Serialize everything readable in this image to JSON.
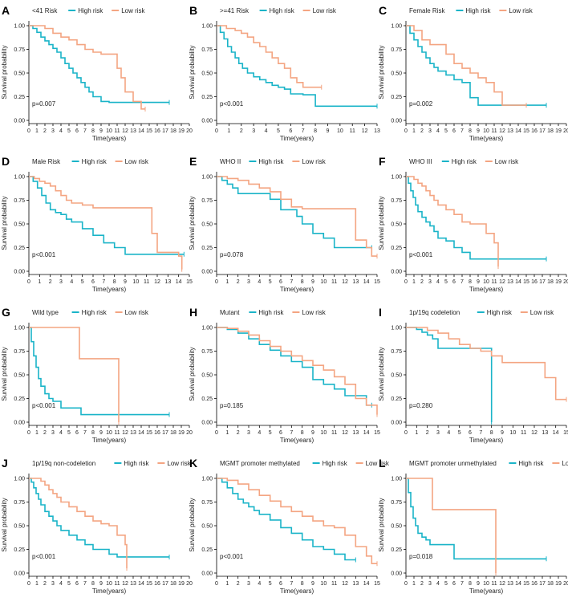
{
  "figure": {
    "colors": {
      "high": "#1ab4c8",
      "low": "#f4a582",
      "axis": "#000000",
      "text": "#222222"
    },
    "legend": {
      "high_label": "High risk",
      "low_label": "Low risk"
    },
    "axis": {
      "xlabel": "Time(years)",
      "ylabel": "Survival probability",
      "yticks": [
        "0.00",
        "0.25",
        "0.50",
        "0.75",
        "1.00"
      ]
    }
  },
  "chart_data": [
    {
      "letter": "A",
      "title": "<41 Risk",
      "type": "line",
      "pvalue": "p=0.007",
      "xmax": 20,
      "ylim": [
        0,
        1
      ],
      "series": [
        {
          "name": "High risk",
          "x": [
            0,
            0.5,
            1,
            1.5,
            2,
            2.5,
            3,
            3.5,
            4,
            4.5,
            5,
            5.5,
            6,
            6.5,
            7,
            7.5,
            8,
            9,
            10,
            17.5
          ],
          "y": [
            1.0,
            0.97,
            0.93,
            0.88,
            0.84,
            0.8,
            0.76,
            0.72,
            0.66,
            0.6,
            0.55,
            0.5,
            0.45,
            0.4,
            0.35,
            0.3,
            0.25,
            0.2,
            0.19,
            0.19
          ]
        },
        {
          "name": "Low risk",
          "x": [
            0,
            1,
            2,
            3,
            4,
            5,
            6,
            7,
            8,
            9,
            10,
            11,
            11.5,
            12,
            13,
            14,
            14.5
          ],
          "y": [
            1.0,
            1.0,
            0.97,
            0.92,
            0.88,
            0.85,
            0.8,
            0.75,
            0.72,
            0.7,
            0.7,
            0.55,
            0.45,
            0.3,
            0.2,
            0.12,
            0.12
          ]
        }
      ]
    },
    {
      "letter": "B",
      "title": ">=41 Risk",
      "type": "line",
      "pvalue": "p<0.001",
      "xmax": 13,
      "ylim": [
        0,
        1
      ],
      "series": [
        {
          "name": "High risk",
          "x": [
            0,
            0.3,
            0.6,
            0.9,
            1.2,
            1.5,
            1.8,
            2.1,
            2.5,
            3,
            3.5,
            4,
            4.5,
            5,
            5.5,
            6,
            7,
            8,
            13
          ],
          "y": [
            1.0,
            0.93,
            0.86,
            0.78,
            0.72,
            0.66,
            0.6,
            0.55,
            0.5,
            0.46,
            0.43,
            0.4,
            0.37,
            0.35,
            0.33,
            0.28,
            0.27,
            0.15,
            0.15
          ]
        },
        {
          "name": "Low risk",
          "x": [
            0,
            0.8,
            1.5,
            2,
            2.5,
            3,
            3.5,
            4,
            4.5,
            5,
            5.5,
            6,
            6.5,
            7,
            8.5
          ],
          "y": [
            1.0,
            0.97,
            0.95,
            0.92,
            0.88,
            0.82,
            0.78,
            0.72,
            0.66,
            0.6,
            0.55,
            0.45,
            0.4,
            0.35,
            0.35
          ]
        }
      ]
    },
    {
      "letter": "C",
      "title": "Female Risk",
      "type": "line",
      "pvalue": "p=0.002",
      "xmax": 20,
      "ylim": [
        0,
        1
      ],
      "series": [
        {
          "name": "High risk",
          "x": [
            0,
            0.5,
            1,
            1.5,
            2,
            2.5,
            3,
            3.5,
            4,
            5,
            6,
            7,
            8,
            9,
            17.5
          ],
          "y": [
            1.0,
            0.92,
            0.85,
            0.78,
            0.72,
            0.66,
            0.6,
            0.56,
            0.52,
            0.48,
            0.43,
            0.4,
            0.24,
            0.16,
            0.16
          ]
        },
        {
          "name": "Low risk",
          "x": [
            0,
            1,
            2,
            3,
            4,
            5,
            6,
            7,
            8,
            9,
            10,
            11,
            12,
            13,
            15
          ],
          "y": [
            1.0,
            0.95,
            0.85,
            0.8,
            0.8,
            0.7,
            0.6,
            0.55,
            0.5,
            0.45,
            0.4,
            0.3,
            0.16,
            0.16,
            0.16
          ]
        }
      ]
    },
    {
      "letter": "D",
      "title": "Male Risk",
      "type": "line",
      "pvalue": "p<0.001",
      "xmax": 15,
      "ylim": [
        0,
        1
      ],
      "series": [
        {
          "name": "High risk",
          "x": [
            0,
            0.4,
            0.8,
            1.2,
            1.6,
            2,
            2.5,
            3,
            3.5,
            4,
            5,
            6,
            7,
            8,
            9,
            14.5
          ],
          "y": [
            1.0,
            0.95,
            0.88,
            0.8,
            0.72,
            0.65,
            0.62,
            0.6,
            0.55,
            0.52,
            0.45,
            0.38,
            0.3,
            0.25,
            0.18,
            0.18
          ]
        },
        {
          "name": "Low risk",
          "x": [
            0,
            0.5,
            1,
            1.5,
            2,
            2.5,
            3,
            3.5,
            4,
            5,
            6,
            7,
            11,
            11.5,
            12,
            14,
            14.3
          ],
          "y": [
            1.0,
            0.98,
            0.95,
            0.93,
            0.9,
            0.85,
            0.8,
            0.75,
            0.72,
            0.7,
            0.67,
            0.67,
            0.67,
            0.4,
            0.2,
            0.16,
            0.02
          ]
        }
      ]
    },
    {
      "letter": "E",
      "title": "WHO II",
      "type": "line",
      "pvalue": "p=0.078",
      "xmax": 15,
      "ylim": [
        0,
        1
      ],
      "series": [
        {
          "name": "High risk",
          "x": [
            0,
            0.5,
            1,
            1.5,
            2,
            3,
            4,
            5,
            6,
            7,
            7.5,
            8,
            9,
            10,
            11,
            14.5
          ],
          "y": [
            1.0,
            0.96,
            0.92,
            0.88,
            0.82,
            0.82,
            0.82,
            0.76,
            0.65,
            0.65,
            0.58,
            0.5,
            0.4,
            0.35,
            0.25,
            0.25
          ]
        },
        {
          "name": "Low risk",
          "x": [
            0,
            1,
            2,
            3,
            4,
            5,
            6,
            7,
            8,
            10,
            12,
            13,
            14,
            14.5,
            15
          ],
          "y": [
            1.0,
            0.98,
            0.96,
            0.92,
            0.88,
            0.84,
            0.76,
            0.68,
            0.66,
            0.66,
            0.66,
            0.33,
            0.25,
            0.16,
            0.16
          ]
        }
      ]
    },
    {
      "letter": "F",
      "title": "WHO III",
      "type": "line",
      "pvalue": "p<0.001",
      "xmax": 20,
      "ylim": [
        0,
        1
      ],
      "series": [
        {
          "name": "High risk",
          "x": [
            0,
            0.3,
            0.6,
            0.9,
            1.2,
            1.5,
            2,
            2.5,
            3,
            3.5,
            4,
            5,
            6,
            7,
            8,
            17.5
          ],
          "y": [
            1.0,
            0.93,
            0.85,
            0.78,
            0.7,
            0.63,
            0.57,
            0.52,
            0.48,
            0.42,
            0.35,
            0.32,
            0.25,
            0.2,
            0.13,
            0.13
          ]
        },
        {
          "name": "Low risk",
          "x": [
            0,
            0.5,
            1,
            1.5,
            2,
            2.5,
            3,
            3.5,
            4,
            5,
            6,
            7,
            8,
            9,
            10,
            11,
            11.5
          ],
          "y": [
            1.0,
            1.0,
            0.97,
            0.93,
            0.9,
            0.85,
            0.8,
            0.75,
            0.7,
            0.65,
            0.6,
            0.52,
            0.5,
            0.5,
            0.4,
            0.3,
            0.05
          ]
        }
      ]
    },
    {
      "letter": "G",
      "title": "Wild type",
      "type": "line",
      "pvalue": "p<0.001",
      "xmax": 20,
      "ylim": [
        0,
        1
      ],
      "series": [
        {
          "name": "High risk",
          "x": [
            0,
            0.3,
            0.6,
            0.9,
            1.2,
            1.5,
            2,
            2.5,
            3,
            4,
            5,
            6,
            6.5,
            17.5
          ],
          "y": [
            1.0,
            0.85,
            0.7,
            0.58,
            0.46,
            0.38,
            0.3,
            0.25,
            0.22,
            0.15,
            0.15,
            0.15,
            0.08,
            0.08
          ]
        },
        {
          "name": "Low risk",
          "x": [
            0,
            6,
            6.3,
            11,
            11.2
          ],
          "y": [
            1.0,
            1.0,
            0.67,
            0.67,
            0.0
          ]
        }
      ]
    },
    {
      "letter": "H",
      "title": "Mutant",
      "type": "line",
      "pvalue": "p=0.185",
      "xmax": 15,
      "ylim": [
        0,
        1
      ],
      "series": [
        {
          "name": "High risk",
          "x": [
            0,
            1,
            2,
            3,
            4,
            5,
            6,
            7,
            8,
            9,
            10,
            11,
            12,
            14,
            14.5
          ],
          "y": [
            1.0,
            0.98,
            0.94,
            0.88,
            0.82,
            0.76,
            0.7,
            0.64,
            0.58,
            0.45,
            0.4,
            0.35,
            0.28,
            0.18,
            0.18
          ]
        },
        {
          "name": "Low risk",
          "x": [
            0,
            1,
            2,
            3,
            4,
            5,
            6,
            7,
            8,
            9,
            10,
            11,
            12,
            13,
            14,
            15
          ],
          "y": [
            1.0,
            0.99,
            0.96,
            0.92,
            0.86,
            0.8,
            0.75,
            0.7,
            0.65,
            0.6,
            0.55,
            0.48,
            0.4,
            0.25,
            0.18,
            0.08
          ]
        }
      ]
    },
    {
      "letter": "I",
      "title": "1p/19q codeletion",
      "type": "line",
      "pvalue": "p=0.280",
      "xmax": 15,
      "ylim": [
        0,
        1
      ],
      "series": [
        {
          "name": "High risk",
          "x": [
            0,
            1,
            1.5,
            2,
            2.5,
            3,
            7.9,
            8
          ],
          "y": [
            1.0,
            0.98,
            0.95,
            0.92,
            0.88,
            0.78,
            0.78,
            0.0
          ]
        },
        {
          "name": "Low risk",
          "x": [
            0,
            1,
            2,
            3,
            4,
            5,
            6,
            7,
            8,
            9,
            10,
            11,
            13,
            14,
            15
          ],
          "y": [
            1.0,
            1.0,
            0.97,
            0.94,
            0.88,
            0.82,
            0.78,
            0.75,
            0.7,
            0.63,
            0.63,
            0.63,
            0.47,
            0.24,
            0.24
          ]
        }
      ]
    },
    {
      "letter": "J",
      "title": "1p/19q non-codeletion",
      "type": "line",
      "pvalue": "p<0.001",
      "xmax": 20,
      "ylim": [
        0,
        1
      ],
      "series": [
        {
          "name": "High risk",
          "x": [
            0,
            0.3,
            0.6,
            0.9,
            1.2,
            1.5,
            2,
            2.5,
            3,
            3.5,
            4,
            5,
            6,
            7,
            8,
            10,
            11,
            17.5
          ],
          "y": [
            1.0,
            0.96,
            0.9,
            0.84,
            0.78,
            0.72,
            0.65,
            0.6,
            0.55,
            0.5,
            0.45,
            0.4,
            0.35,
            0.3,
            0.25,
            0.2,
            0.17,
            0.17
          ]
        },
        {
          "name": "Low risk",
          "x": [
            0,
            0.8,
            1.5,
            2,
            2.5,
            3,
            3.5,
            4,
            5,
            6,
            7,
            8,
            9,
            10,
            11,
            12,
            12.2
          ],
          "y": [
            1.0,
            1.0,
            0.97,
            0.93,
            0.88,
            0.84,
            0.8,
            0.75,
            0.7,
            0.65,
            0.6,
            0.55,
            0.52,
            0.5,
            0.4,
            0.3,
            0.05
          ]
        }
      ]
    },
    {
      "letter": "K",
      "title": "MGMT promoter methylated",
      "type": "line",
      "pvalue": "p<0.001",
      "xmax": 15,
      "ylim": [
        0,
        1
      ],
      "series": [
        {
          "name": "High risk",
          "x": [
            0,
            0.5,
            1,
            1.5,
            2,
            2.5,
            3,
            3.5,
            4,
            5,
            6,
            7,
            8,
            9,
            10,
            11,
            12,
            13
          ],
          "y": [
            1.0,
            0.96,
            0.9,
            0.84,
            0.78,
            0.74,
            0.7,
            0.66,
            0.62,
            0.56,
            0.48,
            0.42,
            0.35,
            0.28,
            0.25,
            0.2,
            0.14,
            0.14
          ]
        },
        {
          "name": "Low risk",
          "x": [
            0,
            1,
            2,
            3,
            4,
            5,
            6,
            7,
            8,
            9,
            10,
            11,
            12,
            13,
            14,
            14.5,
            15
          ],
          "y": [
            1.0,
            0.98,
            0.94,
            0.88,
            0.82,
            0.76,
            0.7,
            0.65,
            0.6,
            0.55,
            0.5,
            0.48,
            0.4,
            0.28,
            0.18,
            0.1,
            0.1
          ]
        }
      ]
    },
    {
      "letter": "L",
      "title": "MGMT promoter unmethylated",
      "type": "line",
      "pvalue": "p=0.018",
      "xmax": 20,
      "ylim": [
        0,
        1
      ],
      "series": [
        {
          "name": "High risk",
          "x": [
            0,
            0.3,
            0.6,
            0.9,
            1.2,
            1.5,
            2,
            2.5,
            3,
            4,
            5,
            6,
            17.5
          ],
          "y": [
            1.0,
            0.85,
            0.7,
            0.58,
            0.5,
            0.42,
            0.38,
            0.35,
            0.3,
            0.3,
            0.3,
            0.15,
            0.15
          ]
        },
        {
          "name": "Low risk",
          "x": [
            0,
            3,
            3.3,
            11,
            11.2
          ],
          "y": [
            1.0,
            1.0,
            0.67,
            0.67,
            0.0
          ]
        }
      ]
    }
  ]
}
